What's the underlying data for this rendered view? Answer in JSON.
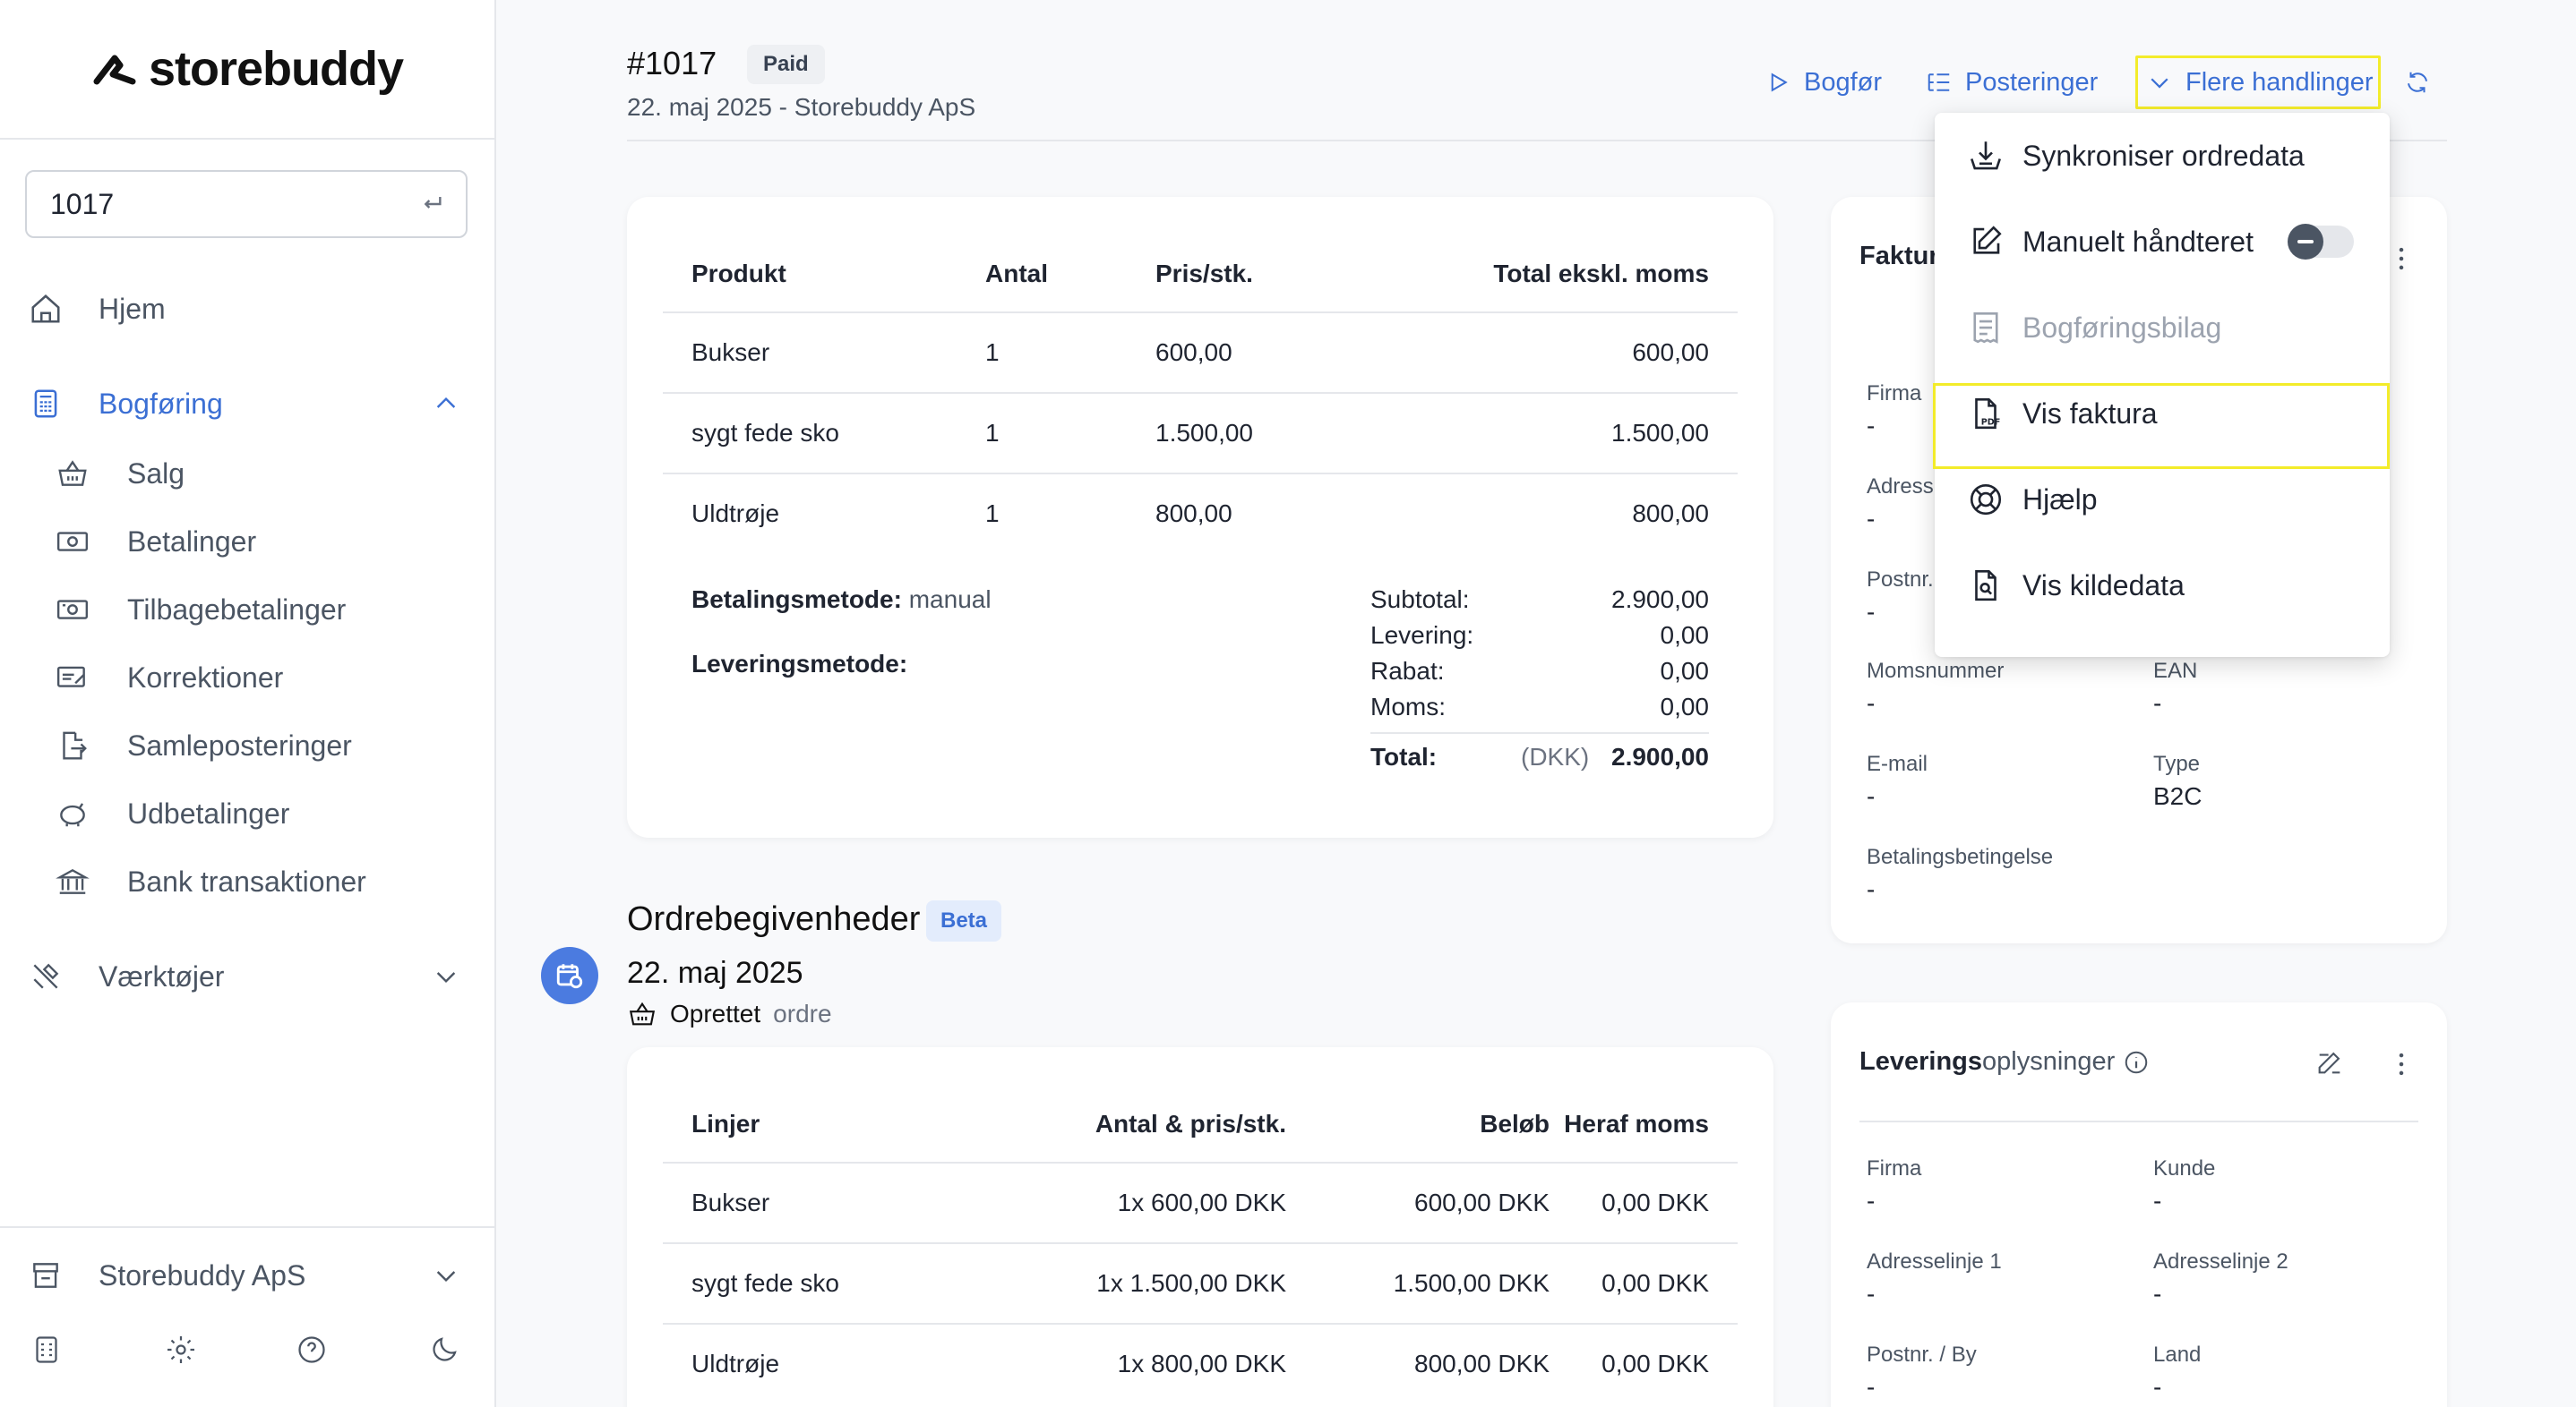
{
  "brand": {
    "name": "storebuddy"
  },
  "search": {
    "value": "1017"
  },
  "nav": {
    "hjem": "Hjem",
    "bogforing": "Bogføring",
    "sub": [
      "Salg",
      "Betalinger",
      "Tilbagebetalinger",
      "Korrektioner",
      "Samleposteringer",
      "Udbetalinger",
      "Bank transaktioner"
    ],
    "vaerktojer": "Værktøjer",
    "company": "Storebuddy ApS"
  },
  "header": {
    "title": "#1017",
    "status": "Paid",
    "subtitle": "22. maj 2025 - Storebuddy ApS",
    "actions": {
      "bogfor": "Bogfør",
      "posteringer": "Posteringer",
      "flere": "Flere handlinger"
    }
  },
  "products": {
    "headers": [
      "Produkt",
      "Antal",
      "Pris/stk.",
      "Total ekskl. moms"
    ],
    "rows": [
      [
        "Bukser",
        "1",
        "600,00",
        "600,00"
      ],
      [
        "sygt fede sko",
        "1",
        "1.500,00",
        "1.500,00"
      ],
      [
        "Uldtrøje",
        "1",
        "800,00",
        "800,00"
      ]
    ],
    "payment_label": "Betalingsmetode:",
    "payment_value": "manual",
    "delivery_label": "Leveringsmetode:",
    "summary": {
      "subtotal_label": "Subtotal:",
      "subtotal": "2.900,00",
      "levering_label": "Levering:",
      "levering": "0,00",
      "rabat_label": "Rabat:",
      "rabat": "0,00",
      "moms_label": "Moms:",
      "moms": "0,00",
      "total_label": "Total:",
      "currency": "(DKK)",
      "total": "2.900,00"
    }
  },
  "events": {
    "title": "Ordrebegivenheder",
    "badge": "Beta",
    "date": "22. maj 2025",
    "event_strong": "Oprettet",
    "event_muted": "ordre",
    "headers": [
      "Linjer",
      "Antal & pris/stk.",
      "Beløb",
      "Heraf moms"
    ],
    "rows": [
      [
        "Bukser",
        "1x 600,00 DKK",
        "600,00 DKK",
        "0,00 DKK"
      ],
      [
        "sygt fede sko",
        "1x 1.500,00 DKK",
        "1.500,00 DKK",
        "0,00 DKK"
      ],
      [
        "Uldtrøje",
        "1x 800,00 DKK",
        "800,00 DKK",
        "0,00 DKK"
      ]
    ]
  },
  "invoice": {
    "title_partial": "Faktur",
    "firma_label": "Firma",
    "firma": "-",
    "adresse_label": "Adress",
    "adresse": "-",
    "postnr_label": "Postnr.",
    "postnr": "-",
    "moms_label": "Momsnummer",
    "moms": "-",
    "ean_label": "EAN",
    "ean": "-",
    "email_label": "E-mail",
    "email": "-",
    "type_label": "Type",
    "type": "B2C",
    "betaling_label": "Betalingsbetingelse",
    "betaling": "-"
  },
  "delivery": {
    "title_strong": "Leverings",
    "title_rest": "oplysninger",
    "firma_label": "Firma",
    "firma": "-",
    "kunde_label": "Kunde",
    "kunde": "-",
    "adr1_label": "Adresselinje 1",
    "adr1": "-",
    "adr2_label": "Adresselinje 2",
    "adr2": "-",
    "postnr_label": "Postnr. / By",
    "postnr": "-",
    "land_label": "Land",
    "land": "-"
  },
  "dropdown": {
    "items": [
      "Synkroniser ordredata",
      "Manuelt håndteret",
      "Bogføringsbilag",
      "Vis faktura",
      "Hjælp",
      "Vis kildedata"
    ],
    "manual_toggle_on": false
  },
  "colors": {
    "accent": "#3b6fd4",
    "highlight": "#f3ec2a"
  }
}
